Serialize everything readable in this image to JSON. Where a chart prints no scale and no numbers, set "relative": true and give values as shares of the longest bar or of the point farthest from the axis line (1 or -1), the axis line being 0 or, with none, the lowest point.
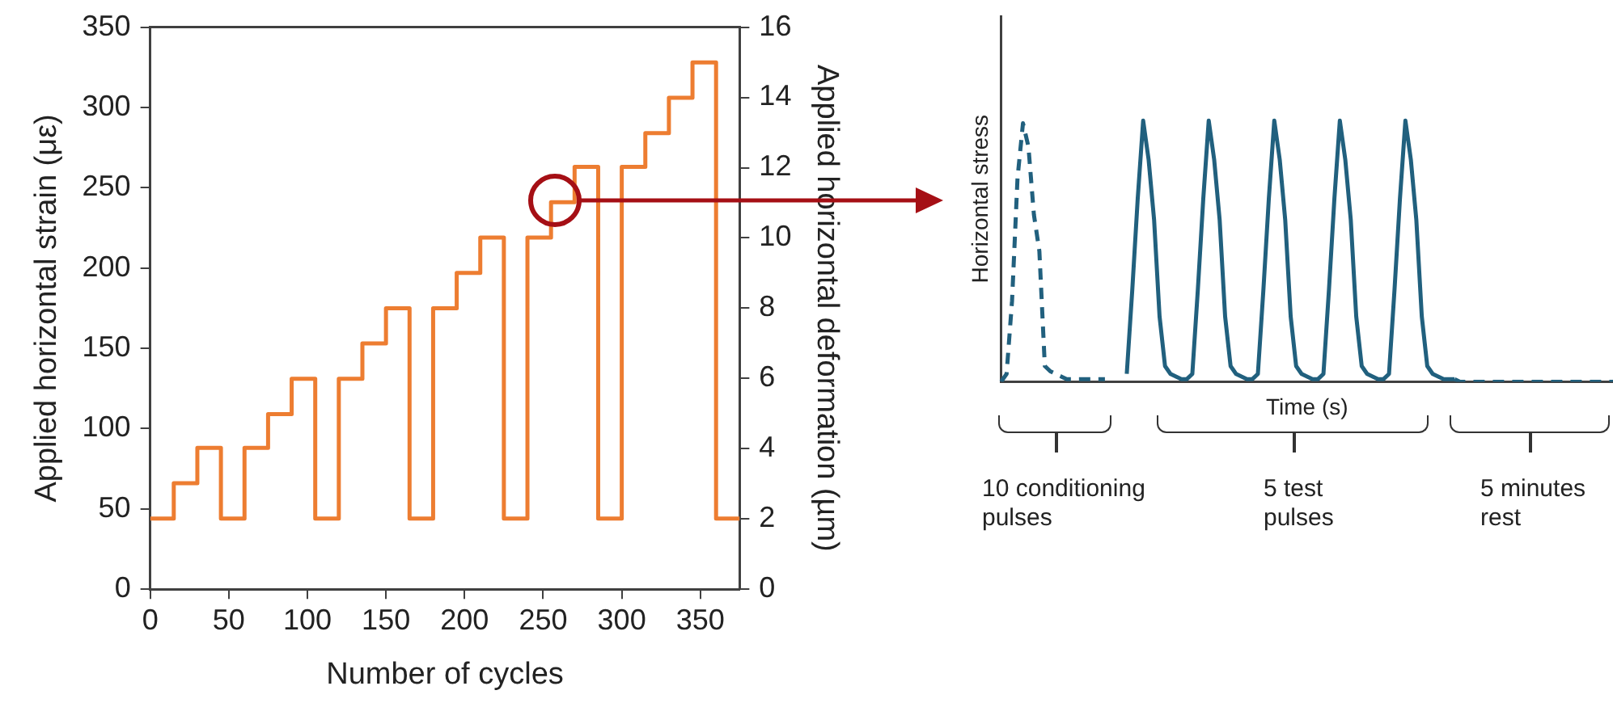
{
  "chart_data": [
    {
      "type": "step",
      "xlabel": "Number of cycles",
      "ylabel": "Applied horizontal strain (με)",
      "y2label": "Applied horizontal deformation (µm)",
      "x": [
        0,
        15,
        30,
        45,
        60,
        75,
        90,
        105,
        120,
        135,
        150,
        165,
        180,
        195,
        210,
        225,
        240,
        255,
        270,
        285,
        300,
        315,
        330,
        345,
        360,
        375
      ],
      "series": [
        {
          "color": "#ed7d31",
          "values": [
            44,
            66,
            88,
            44,
            88,
            109,
            131,
            44,
            131,
            153,
            175,
            44,
            175,
            197,
            219,
            44,
            219,
            241,
            263,
            44,
            263,
            284,
            306,
            328,
            44,
            44
          ]
        }
      ],
      "xlim": [
        0,
        375
      ],
      "xticks": [
        0,
        50,
        100,
        150,
        200,
        250,
        300,
        350
      ],
      "ylim": [
        0,
        350
      ],
      "yticks": [
        0,
        50,
        100,
        150,
        200,
        250,
        300,
        350
      ],
      "y2lim": [
        0,
        16
      ],
      "y2ticks": [
        0,
        2,
        4,
        6,
        8,
        10,
        12,
        14,
        16
      ],
      "grid": false,
      "legend": false,
      "marker": "none"
    },
    {
      "type": "line",
      "relative": true,
      "xlabel": "Time (s)",
      "ylabel": "Horizontal stress",
      "tick_labels": false,
      "grid": false,
      "legend": false,
      "marker": "none",
      "annotations": [
        "10 conditioning pulses",
        "5 test pulses",
        "5 minutes rest"
      ],
      "categories": [
        null,
        null,
        null,
        null,
        null,
        null,
        null,
        null,
        null,
        null,
        null,
        null,
        null,
        null,
        null,
        null,
        null,
        null,
        null,
        null,
        null,
        null,
        null,
        null,
        null,
        null,
        null,
        null,
        null,
        null,
        null,
        null,
        null,
        null,
        null,
        null,
        null,
        null,
        null,
        null,
        null,
        null,
        null,
        null,
        null,
        null,
        null,
        null,
        null,
        null,
        null,
        null,
        null,
        null,
        null,
        null,
        null,
        null,
        null,
        null,
        null,
        null,
        null,
        null,
        null,
        null,
        null,
        null,
        null,
        null,
        null,
        null,
        null,
        null,
        null,
        null,
        null,
        null,
        null,
        null,
        null,
        null,
        null,
        null,
        null,
        null,
        null,
        null,
        null,
        null,
        null,
        null,
        null,
        null,
        null,
        null,
        null,
        null,
        null,
        null,
        null,
        null,
        null,
        null,
        null,
        null,
        null,
        null,
        null,
        null,
        null,
        null,
        null
      ],
      "series": [
        {
          "color": "#21607e",
          "line_style": "dashed",
          "values": [
            0,
            0.03,
            0.31,
            0.78,
            0.99,
            0.9,
            0.64,
            0.5,
            0.06,
            0.04,
            0.03,
            0.02,
            0.01,
            0.01,
            0.01,
            0.01,
            0.01,
            0.01,
            0.01,
            0.01,
            null,
            null,
            null,
            null,
            null,
            null,
            null,
            null,
            null,
            null,
            null,
            null,
            null,
            null,
            null,
            null,
            null,
            null,
            null,
            null,
            null,
            null,
            null,
            null,
            null,
            null,
            null,
            null,
            null,
            null,
            null,
            null,
            null,
            null,
            null,
            null,
            null,
            null,
            null,
            null,
            null,
            null,
            null,
            null,
            null,
            null,
            null,
            null,
            null,
            null,
            null,
            null,
            null,
            null,
            null,
            null,
            null,
            null,
            null,
            null,
            null,
            null,
            null,
            0.01,
            0,
            0,
            0,
            0,
            0,
            0,
            0,
            0,
            0,
            0,
            0,
            0,
            0,
            0,
            0,
            0,
            0,
            0,
            0,
            0,
            0,
            0,
            0,
            0,
            0,
            0,
            0,
            0,
            0
          ]
        },
        {
          "color": "#21607e",
          "line_style": "solid",
          "values": [
            null,
            null,
            null,
            null,
            null,
            null,
            null,
            null,
            null,
            null,
            null,
            null,
            null,
            null,
            null,
            null,
            null,
            null,
            null,
            null,
            null,
            null,
            null,
            0.03,
            0.35,
            0.7,
            1,
            0.85,
            0.62,
            0.25,
            0.06,
            0.03,
            0.02,
            0.01,
            0.01,
            0.03,
            0.35,
            0.7,
            1,
            0.85,
            0.62,
            0.25,
            0.06,
            0.03,
            0.02,
            0.01,
            0.01,
            0.03,
            0.35,
            0.7,
            1,
            0.85,
            0.62,
            0.25,
            0.06,
            0.03,
            0.02,
            0.01,
            0.01,
            0.03,
            0.35,
            0.7,
            1,
            0.85,
            0.62,
            0.25,
            0.06,
            0.03,
            0.02,
            0.01,
            0.01,
            0.03,
            0.35,
            0.7,
            1,
            0.85,
            0.62,
            0.25,
            0.06,
            0.03,
            0.02,
            0.01,
            0.01,
            0.01,
            null,
            null,
            null,
            null,
            null,
            null,
            null,
            null,
            null,
            null,
            null,
            null,
            null,
            null,
            null,
            null,
            null,
            null,
            null,
            null,
            null,
            null,
            null,
            null,
            null,
            null,
            null,
            null,
            null
          ]
        }
      ]
    }
  ]
}
